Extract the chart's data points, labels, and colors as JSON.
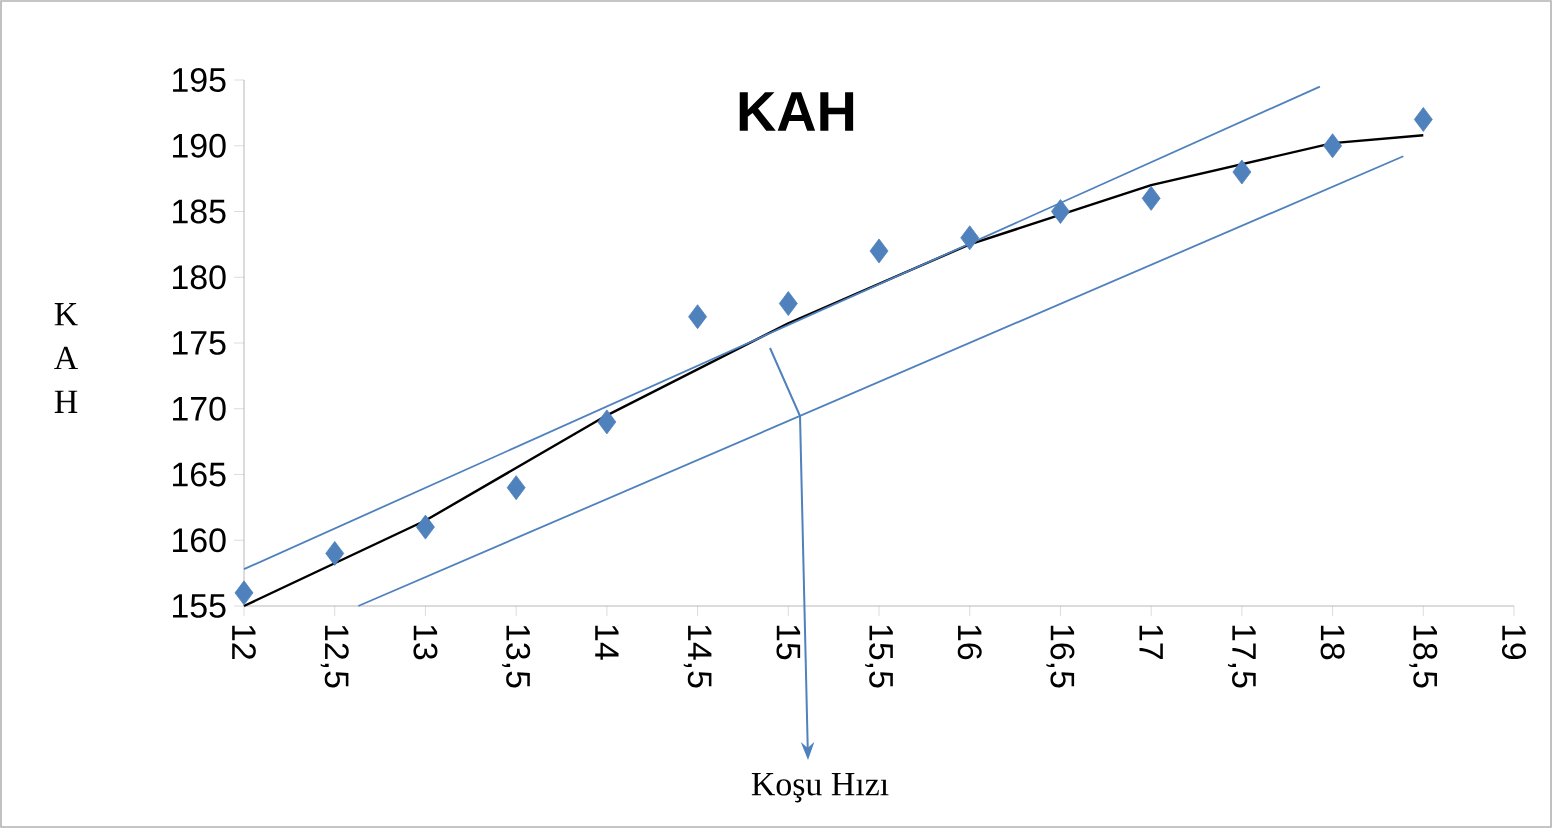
{
  "chart_data": {
    "type": "scatter",
    "title": "KAH",
    "xlabel": "Koşu Hızı",
    "ylabel": "K A H",
    "xlim": [
      12,
      19
    ],
    "ylim": [
      155,
      195
    ],
    "xticks": [
      12,
      {
        "value": 12.5,
        "label": "12,5"
      },
      13,
      {
        "value": 13.5,
        "label": "13,5"
      },
      14,
      {
        "value": 14.5,
        "label": "14,5"
      },
      15,
      {
        "value": 15.5,
        "label": "15,5"
      },
      16,
      {
        "value": 16.5,
        "label": "16,5"
      },
      17,
      {
        "value": 17.5,
        "label": "17,5"
      },
      18,
      {
        "value": 18.5,
        "label": "18,5"
      },
      19
    ],
    "yticks": [
      155,
      160,
      165,
      170,
      175,
      180,
      185,
      190,
      195
    ],
    "grid": false,
    "series": [
      {
        "color": "#4f81bd",
        "marker": "diamond",
        "x": [
          12,
          12.5,
          13,
          13.5,
          14,
          14.5,
          15,
          15.5,
          16,
          16.5,
          17,
          17.5,
          18,
          18.5
        ],
        "values": [
          156,
          159,
          161,
          164,
          169,
          177,
          178,
          182,
          183,
          185,
          186,
          188,
          190,
          192
        ]
      },
      {
        "type": "line",
        "color": "#000000",
        "marker": "none",
        "x": [
          12,
          13,
          14,
          15,
          16,
          17,
          18,
          18.5
        ],
        "values": [
          155,
          161.5,
          169.5,
          176.5,
          182.5,
          187,
          190.2,
          190.8
        ]
      },
      {
        "type": "line",
        "color": "#4f81bd",
        "marker": "none",
        "x": [
          12,
          17.93
        ],
        "values": [
          157.8,
          194.5
        ]
      },
      {
        "type": "line",
        "color": "#4f81bd",
        "marker": "none",
        "x": [
          12.63,
          18.39
        ],
        "values": [
          155,
          189.2
        ]
      }
    ]
  }
}
